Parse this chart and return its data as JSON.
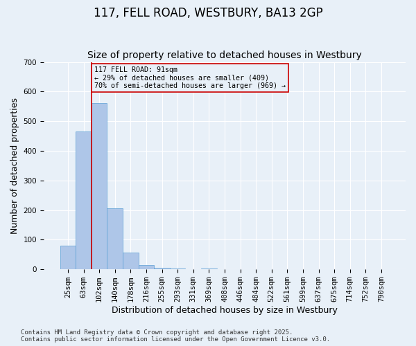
{
  "title": "117, FELL ROAD, WESTBURY, BA13 2GP",
  "subtitle": "Size of property relative to detached houses in Westbury",
  "xlabel": "Distribution of detached houses by size in Westbury",
  "ylabel": "Number of detached properties",
  "bar_values": [
    80,
    465,
    560,
    207,
    57,
    15,
    5,
    3,
    0,
    2,
    0,
    0,
    0,
    0,
    0,
    0,
    0,
    0,
    0,
    0,
    0
  ],
  "categories": [
    "25sqm",
    "63sqm",
    "102sqm",
    "140sqm",
    "178sqm",
    "216sqm",
    "255sqm",
    "293sqm",
    "331sqm",
    "369sqm",
    "408sqm",
    "446sqm",
    "484sqm",
    "522sqm",
    "561sqm",
    "599sqm",
    "637sqm",
    "675sqm",
    "714sqm",
    "752sqm",
    "790sqm"
  ],
  "bar_color": "#aec6e8",
  "bar_edgecolor": "#5a9fd4",
  "background_color": "#e8f0f8",
  "grid_color": "#ffffff",
  "annotation_box_text": "117 FELL ROAD: 91sqm\n← 29% of detached houses are smaller (409)\n70% of semi-detached houses are larger (969) →",
  "annotation_box_edgecolor": "#cc0000",
  "vline_x": 1.5,
  "vline_color": "#cc0000",
  "ylim": [
    0,
    700
  ],
  "yticks": [
    0,
    100,
    200,
    300,
    400,
    500,
    600,
    700
  ],
  "footnote": "Contains HM Land Registry data © Crown copyright and database right 2025.\nContains public sector information licensed under the Open Government Licence v3.0.",
  "title_fontsize": 12,
  "subtitle_fontsize": 10,
  "xlabel_fontsize": 9,
  "ylabel_fontsize": 9,
  "tick_fontsize": 7.5,
  "footnote_fontsize": 6.5
}
